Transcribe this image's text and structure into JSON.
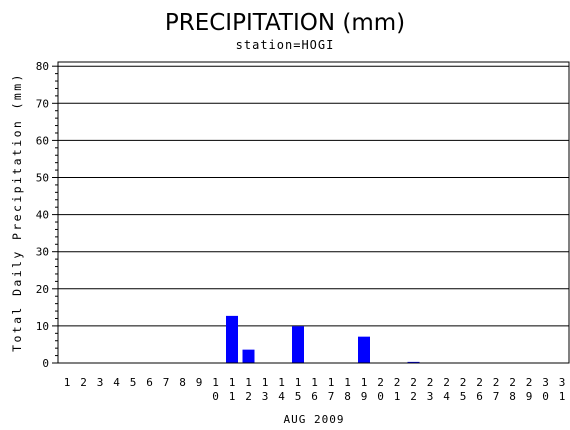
{
  "chart_data": {
    "type": "bar",
    "title": "PRECIPITATION (mm)",
    "subtitle": "station=HOGI",
    "xlabel": "AUG 2009",
    "ylabel": "Total Daily Precipitation (mm)",
    "categories": [
      "1",
      "2",
      "3",
      "4",
      "5",
      "6",
      "7",
      "8",
      "9",
      "10",
      "11",
      "12",
      "13",
      "14",
      "15",
      "16",
      "17",
      "18",
      "19",
      "20",
      "21",
      "22",
      "23",
      "24",
      "25",
      "26",
      "27",
      "28",
      "29",
      "30",
      "31"
    ],
    "values": [
      0,
      0,
      0,
      0,
      0,
      0,
      0,
      0,
      0,
      0,
      12.7,
      3.6,
      0,
      0,
      9.9,
      0,
      0,
      0,
      7.1,
      0,
      0,
      0.3,
      0,
      0,
      0,
      0,
      0,
      0,
      0,
      0,
      0
    ],
    "ylim": [
      0,
      82
    ],
    "yticks": [
      0,
      10,
      20,
      30,
      40,
      50,
      60,
      70,
      80
    ],
    "grid": true,
    "bar_color": "#0000ff"
  }
}
